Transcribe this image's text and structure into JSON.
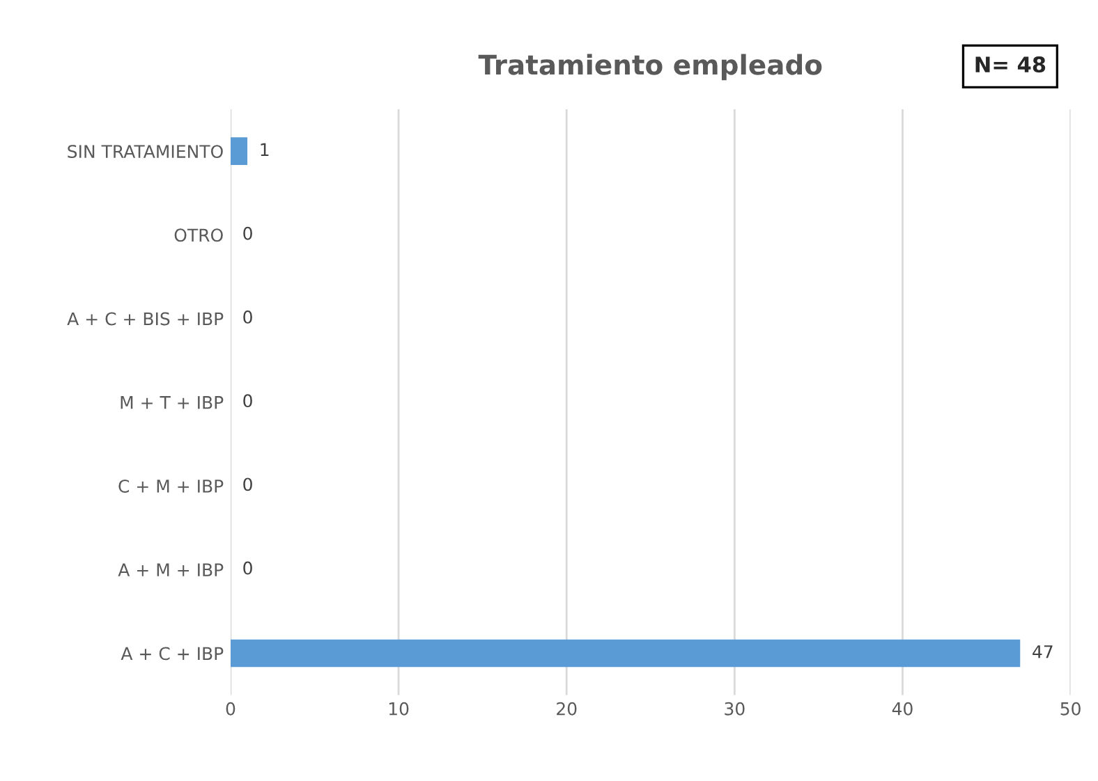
{
  "chart_data": {
    "type": "bar",
    "orientation": "horizontal",
    "title": "Tratamiento empleado",
    "categories": [
      "SIN TRATAMIENTO",
      "OTRO",
      "A + C + BIS + IBP",
      "M + T + IBP",
      "C + M + IBP",
      "A + M + IBP",
      "A + C + IBP"
    ],
    "values": [
      1,
      0,
      0,
      0,
      0,
      0,
      47
    ],
    "color": "#5b9bd5",
    "xlim": [
      0,
      50
    ],
    "xticks": [
      0,
      10,
      20,
      30,
      40,
      50
    ],
    "grid": "x",
    "data_labels": true,
    "annotations": [
      "N= 48"
    ]
  }
}
